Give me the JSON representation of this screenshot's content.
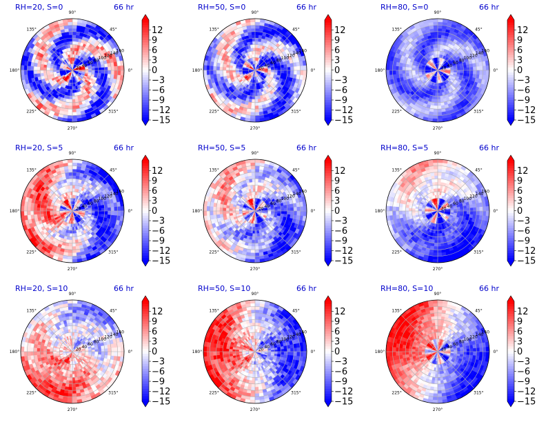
{
  "figure": {
    "time_label": "66 hr",
    "colormap": [
      "#0000ff",
      "#ffffff",
      "#ff0000"
    ],
    "ring_ticks": [
      "20",
      "40",
      "60",
      "80",
      "100",
      "120",
      "140",
      "160"
    ],
    "angle_ticks": [
      "0°",
      "45°",
      "90°",
      "135°",
      "180°",
      "225°",
      "270°",
      "315°"
    ]
  },
  "chart_data": [
    {
      "type": "heatmap",
      "projection": "polar",
      "title": "RH=20, S=0",
      "time": "66 hr",
      "r_range": [
        0,
        160
      ],
      "colorbar": {
        "ticks": [
          12,
          9,
          6,
          3,
          0,
          -3,
          -6,
          -9,
          -12,
          -15
        ],
        "vmin": -15,
        "vmax": 15,
        "extend": "both"
      },
      "pattern": {
        "bias": -0.25,
        "spiral_amp": 0.7,
        "west_east": 0.0,
        "north_south": 0.0,
        "noise": 0.35,
        "core_pos": 0.9
      }
    },
    {
      "type": "heatmap",
      "projection": "polar",
      "title": "RH=50, S=0",
      "time": "66 hr",
      "r_range": [
        0,
        160
      ],
      "colorbar": {
        "ticks": [
          12,
          9,
          6,
          3,
          0,
          -3,
          -6,
          -9,
          -12,
          -15
        ],
        "vmin": -15,
        "vmax": 15,
        "extend": "both"
      },
      "pattern": {
        "bias": -0.35,
        "spiral_amp": 0.55,
        "west_east": 0.15,
        "north_south": 0.0,
        "noise": 0.3,
        "core_pos": 0.8
      }
    },
    {
      "type": "heatmap",
      "projection": "polar",
      "title": "RH=80, S=0",
      "time": "66 hr",
      "r_range": [
        0,
        160
      ],
      "colorbar": {
        "ticks": [
          12,
          9,
          6,
          3,
          0,
          -3,
          -6,
          -9,
          -12,
          -15
        ],
        "vmin": -15,
        "vmax": 15,
        "extend": "both"
      },
      "pattern": {
        "bias": -0.5,
        "spiral_amp": 0.3,
        "west_east": 0.0,
        "north_south": 0.0,
        "noise": 0.15,
        "core_pos": 0.9
      }
    },
    {
      "type": "heatmap",
      "projection": "polar",
      "title": "RH=20, S=5",
      "time": "66 hr",
      "r_range": [
        0,
        160
      ],
      "colorbar": {
        "ticks": [
          12,
          9,
          6,
          3,
          0,
          -3,
          -6,
          -9,
          -12,
          -15
        ],
        "vmin": -15,
        "vmax": 15,
        "extend": "both"
      },
      "pattern": {
        "bias": -0.1,
        "spiral_amp": 0.35,
        "west_east": 0.6,
        "north_south": 0.0,
        "noise": 0.3,
        "core_pos": 0.8
      }
    },
    {
      "type": "heatmap",
      "projection": "polar",
      "title": "RH=50, S=5",
      "time": "66 hr",
      "r_range": [
        0,
        160
      ],
      "colorbar": {
        "ticks": [
          12,
          9,
          6,
          3,
          0,
          -3,
          -6,
          -9,
          -12,
          -15
        ],
        "vmin": -15,
        "vmax": 15,
        "extend": "both"
      },
      "pattern": {
        "bias": -0.25,
        "spiral_amp": 0.3,
        "west_east": 0.35,
        "north_south": 0.2,
        "noise": 0.3,
        "core_pos": 0.8
      }
    },
    {
      "type": "heatmap",
      "projection": "polar",
      "title": "RH=80, S=5",
      "time": "66 hr",
      "r_range": [
        0,
        160
      ],
      "colorbar": {
        "ticks": [
          12,
          9,
          6,
          3,
          0,
          -3,
          -6,
          -9,
          -12,
          -15
        ],
        "vmin": -15,
        "vmax": 15,
        "extend": "both"
      },
      "pattern": {
        "bias": -0.35,
        "spiral_amp": 0.2,
        "west_east": 0.2,
        "north_south": 0.45,
        "noise": 0.2,
        "core_pos": 0.9
      }
    },
    {
      "type": "heatmap",
      "projection": "polar",
      "title": "RH=20, S=10",
      "time": "66 hr",
      "r_range": [
        0,
        160
      ],
      "colorbar": {
        "ticks": [
          12,
          9,
          6,
          3,
          0,
          -3,
          -6,
          -9,
          -12,
          -15
        ],
        "vmin": -15,
        "vmax": 15,
        "extend": "both"
      },
      "pattern": {
        "bias": 0.15,
        "spiral_amp": 0.2,
        "west_east": 0.2,
        "north_south": -0.35,
        "noise": 0.3,
        "core_pos": 0.2
      }
    },
    {
      "type": "heatmap",
      "projection": "polar",
      "title": "RH=50, S=10",
      "time": "66 hr",
      "r_range": [
        0,
        160
      ],
      "colorbar": {
        "ticks": [
          12,
          9,
          6,
          3,
          0,
          -3,
          -6,
          -9,
          -12,
          -15
        ],
        "vmin": -15,
        "vmax": 15,
        "extend": "both"
      },
      "pattern": {
        "bias": 0.0,
        "spiral_amp": 0.15,
        "west_east": 0.75,
        "north_south": 0.0,
        "noise": 0.3,
        "core_pos": 0.4
      }
    },
    {
      "type": "heatmap",
      "projection": "polar",
      "title": "RH=80, S=10",
      "time": "66 hr",
      "r_range": [
        0,
        160
      ],
      "colorbar": {
        "ticks": [
          12,
          9,
          6,
          3,
          0,
          -3,
          -6,
          -9,
          -12,
          -15
        ],
        "vmin": -15,
        "vmax": 15,
        "extend": "both"
      },
      "pattern": {
        "bias": 0.0,
        "spiral_amp": 0.1,
        "west_east": 0.7,
        "north_south": 0.3,
        "noise": 0.2,
        "core_pos": 0.7
      }
    }
  ]
}
